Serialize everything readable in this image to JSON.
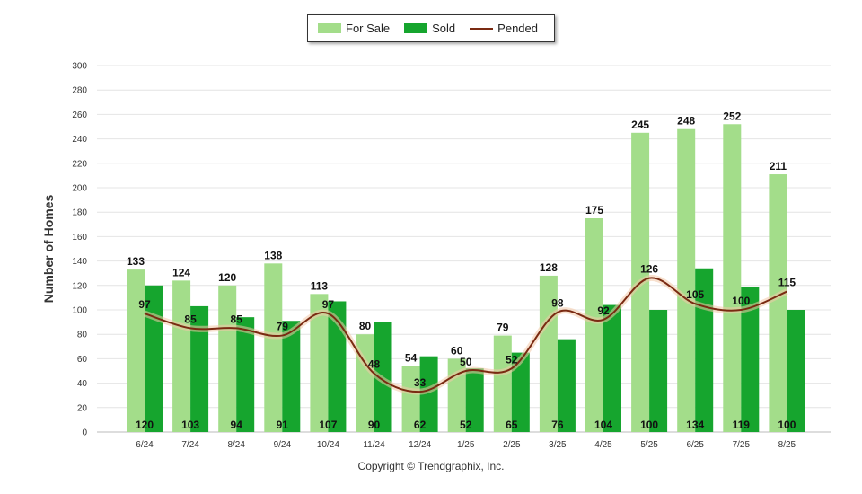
{
  "chart_data": {
    "type": "bar",
    "ylabel": "Number of Homes",
    "xlabel": "",
    "title": "",
    "ylim": [
      0,
      300
    ],
    "ytick_step": 20,
    "grid": true,
    "legend_position": "top-center",
    "categories": [
      "6/24",
      "7/24",
      "8/24",
      "9/24",
      "10/24",
      "11/24",
      "12/24",
      "1/25",
      "2/25",
      "3/25",
      "4/25",
      "5/25",
      "6/25",
      "7/25",
      "8/25"
    ],
    "series": [
      {
        "name": "For Sale",
        "kind": "bar",
        "color": "#a3dd8a",
        "values": [
          133,
          124,
          120,
          138,
          113,
          80,
          54,
          60,
          79,
          128,
          175,
          245,
          248,
          252,
          211
        ]
      },
      {
        "name": "Sold",
        "kind": "bar",
        "color": "#16a52e",
        "values": [
          120,
          103,
          94,
          91,
          107,
          90,
          62,
          52,
          65,
          76,
          104,
          100,
          134,
          119,
          100
        ]
      },
      {
        "name": "Pended",
        "kind": "line",
        "color": "#7a2a12",
        "values": [
          97,
          85,
          85,
          79,
          97,
          48,
          33,
          50,
          52,
          98,
          92,
          126,
          105,
          100,
          115
        ]
      }
    ]
  },
  "footer": {
    "copyright": "Copyright © Trendgraphix, Inc."
  }
}
